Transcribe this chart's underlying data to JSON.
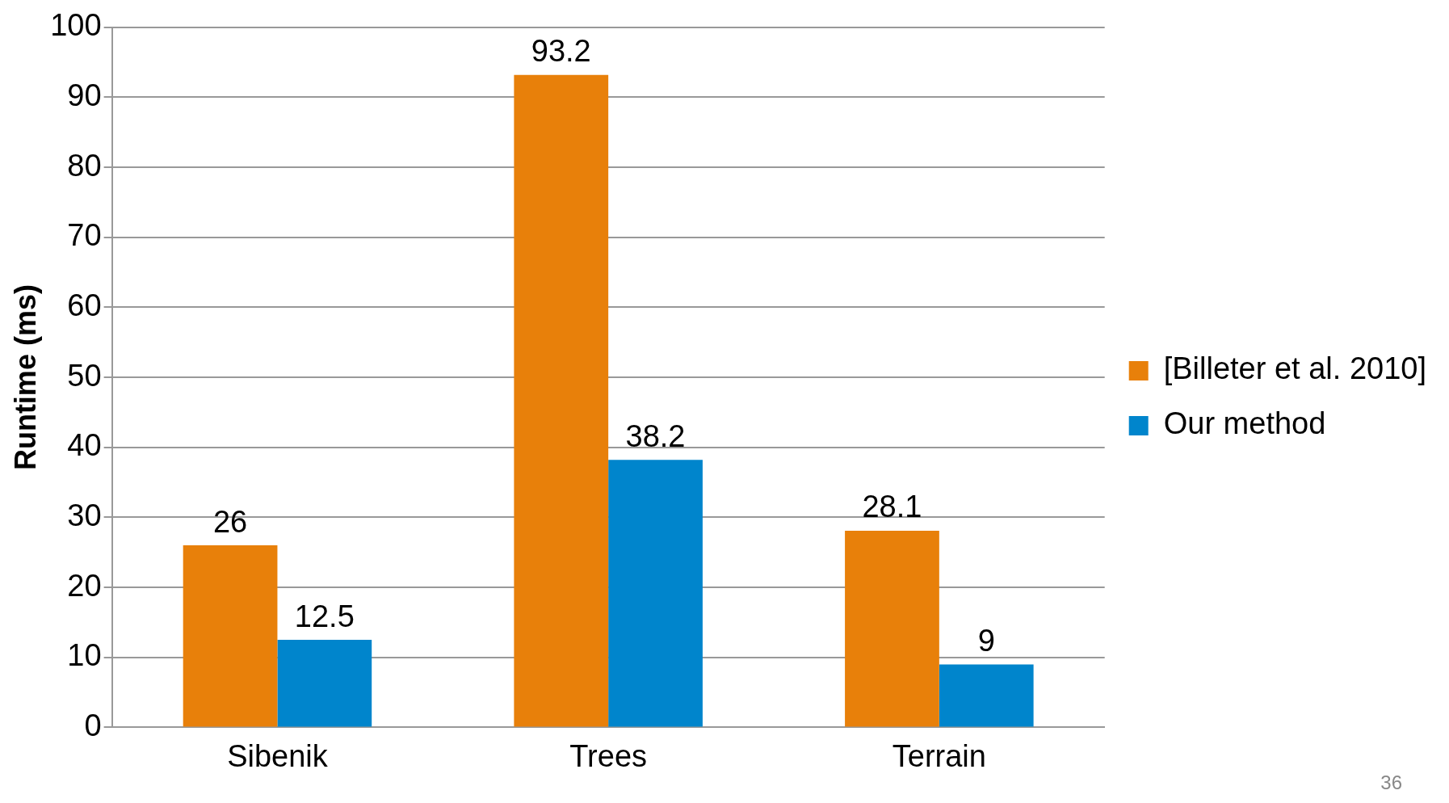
{
  "chart_data": {
    "type": "bar",
    "ylabel": "Runtime (ms)",
    "categories": [
      "Sibenik",
      "Trees",
      "Terrain"
    ],
    "series": [
      {
        "name": "[Billeter et al. 2010]",
        "color": "#e8800a",
        "values": [
          26,
          93.2,
          28.1
        ]
      },
      {
        "name": "Our method",
        "color": "#0085cc",
        "values": [
          12.5,
          38.2,
          9
        ]
      }
    ],
    "ylim": [
      0,
      100
    ],
    "yticks": [
      0,
      10,
      20,
      30,
      40,
      50,
      60,
      70,
      80,
      90,
      100
    ],
    "grid": "y",
    "legend": "right",
    "data_labels": true,
    "annotations": [
      "36"
    ]
  }
}
